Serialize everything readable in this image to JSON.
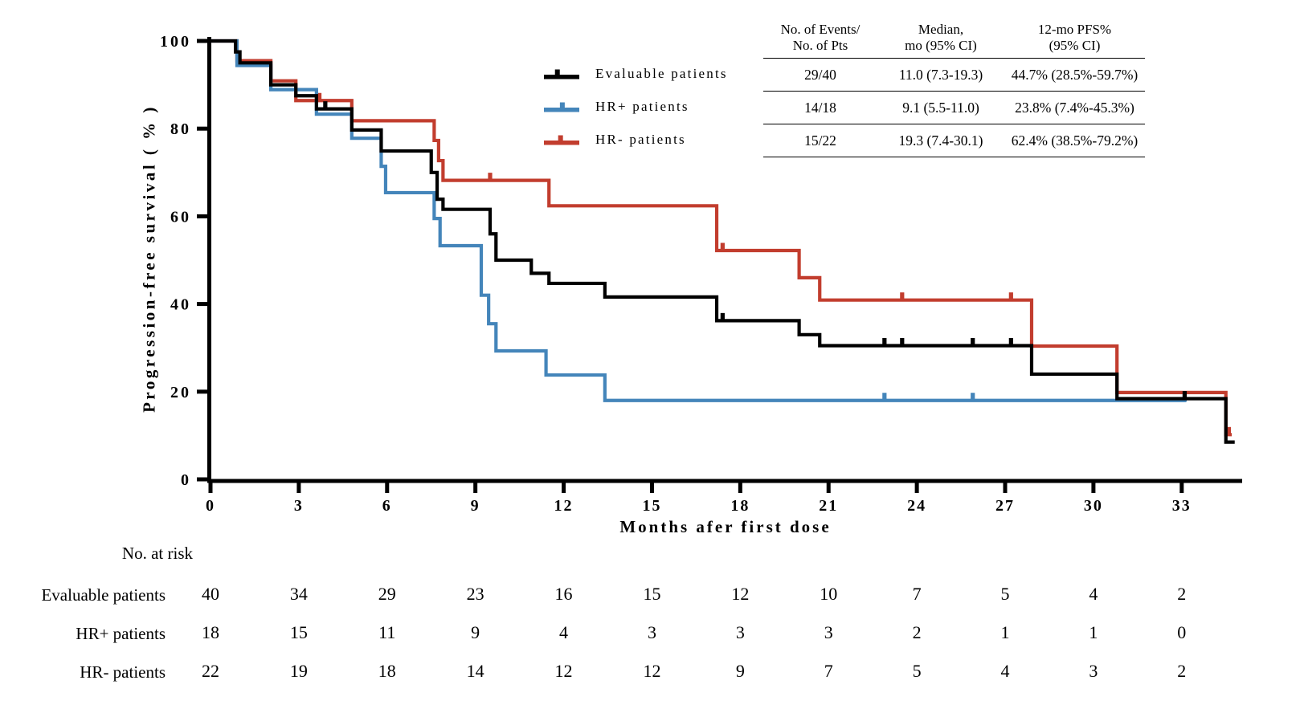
{
  "chart_data": {
    "type": "line",
    "subtype": "kaplan-meier-step",
    "title": "",
    "xlabel": "Months afer first dose",
    "ylabel": "Progression-free survival ( % )",
    "xlim": [
      0,
      35
    ],
    "ylim": [
      0,
      100
    ],
    "x_ticks": [
      0,
      3,
      6,
      9,
      12,
      15,
      18,
      21,
      24,
      27,
      30,
      33
    ],
    "y_ticks": [
      0,
      20,
      40,
      60,
      80,
      100
    ],
    "grid": false,
    "legend_position": "upper-right",
    "series": [
      {
        "name": "Evaluable patients",
        "color": "#000000",
        "steps": [
          [
            0,
            100
          ],
          [
            0.85,
            97.5
          ],
          [
            1.0,
            95
          ],
          [
            2.05,
            90
          ],
          [
            2.9,
            87.5
          ],
          [
            3.6,
            84.5
          ],
          [
            4.8,
            79.7
          ],
          [
            5.8,
            74.9
          ],
          [
            7.5,
            70
          ],
          [
            7.7,
            63.9
          ],
          [
            7.9,
            61.6
          ],
          [
            9.5,
            56
          ],
          [
            9.7,
            50
          ],
          [
            10.9,
            47
          ],
          [
            11.5,
            44.7
          ],
          [
            13.4,
            41.6
          ],
          [
            17.2,
            36.2
          ],
          [
            20.0,
            33
          ],
          [
            20.7,
            30.5
          ],
          [
            27.9,
            24
          ],
          [
            30.8,
            18.4
          ],
          [
            34.5,
            8.5
          ]
        ],
        "end_month": 34.8,
        "censors": [
          [
            3.9,
            84.5
          ],
          [
            17.4,
            36.2
          ],
          [
            22.9,
            30.5
          ],
          [
            23.5,
            30.5
          ],
          [
            25.9,
            30.5
          ],
          [
            27.2,
            30.5
          ],
          [
            33.1,
            18.4
          ]
        ]
      },
      {
        "name": "HR+ patients",
        "color": "#4485BA",
        "steps": [
          [
            0,
            100
          ],
          [
            0.9,
            94.4
          ],
          [
            2.05,
            88.9
          ],
          [
            3.6,
            83.3
          ],
          [
            4.8,
            77.8
          ],
          [
            5.8,
            71.4
          ],
          [
            5.95,
            65.4
          ],
          [
            7.6,
            59.5
          ],
          [
            7.8,
            53.3
          ],
          [
            9.2,
            42
          ],
          [
            9.45,
            35.5
          ],
          [
            9.7,
            29.3
          ],
          [
            11.4,
            23.8
          ],
          [
            13.4,
            18.0
          ]
        ],
        "end_month": 33.15,
        "censors": [
          [
            22.9,
            18.0
          ],
          [
            25.9,
            18.0
          ],
          [
            33.1,
            18.0
          ]
        ]
      },
      {
        "name": "HR- patients",
        "color": "#C23D2E",
        "steps": [
          [
            0,
            100
          ],
          [
            0.9,
            95.5
          ],
          [
            2.05,
            90.9
          ],
          [
            2.9,
            86.4
          ],
          [
            4.8,
            81.8
          ],
          [
            7.6,
            77.3
          ],
          [
            7.75,
            72.7
          ],
          [
            7.9,
            68.2
          ],
          [
            11.5,
            62.4
          ],
          [
            17.2,
            52.2
          ],
          [
            20.0,
            46.0
          ],
          [
            20.7,
            40.9
          ],
          [
            27.9,
            30.4
          ],
          [
            30.8,
            19.8
          ],
          [
            34.5,
            10.2
          ]
        ],
        "end_month": 34.7,
        "censors": [
          [
            3.7,
            86.4
          ],
          [
            9.5,
            68.2
          ],
          [
            17.4,
            52.2
          ],
          [
            23.5,
            40.9
          ],
          [
            27.2,
            40.9
          ],
          [
            34.6,
            10.2
          ]
        ]
      }
    ]
  },
  "legend": {
    "entries": [
      {
        "label": "Evaluable patients",
        "color": "#000000"
      },
      {
        "label": "HR+ patients",
        "color": "#4485BA"
      },
      {
        "label": "HR- patients",
        "color": "#C23D2E"
      }
    ]
  },
  "stats_table": {
    "headers": [
      {
        "line1": "No. of Events/",
        "line2": "No. of Pts"
      },
      {
        "line1": "Median,",
        "line2": "mo (95% CI)"
      },
      {
        "line1": "12-mo PFS%",
        "line2": "(95% CI)"
      }
    ],
    "rows": [
      {
        "label": "Evaluable patients",
        "cells": [
          "29/40",
          "11.0 (7.3-19.3)",
          "44.7% (28.5%-59.7%)"
        ]
      },
      {
        "label": "HR+ patients",
        "cells": [
          "14/18",
          "9.1 (5.5-11.0)",
          "23.8% (7.4%-45.3%)"
        ]
      },
      {
        "label": "HR- patients",
        "cells": [
          "15/22",
          "19.3 (7.4-30.1)",
          "62.4% (38.5%-79.2%)"
        ]
      }
    ]
  },
  "risk_table": {
    "title": "No. at risk",
    "months": [
      0,
      3,
      6,
      9,
      12,
      15,
      18,
      21,
      24,
      27,
      30,
      33
    ],
    "rows": [
      {
        "label": "Evaluable patients",
        "values": [
          40,
          34,
          29,
          23,
          16,
          15,
          12,
          10,
          7,
          5,
          4,
          2
        ]
      },
      {
        "label": "HR+ patients",
        "values": [
          18,
          15,
          11,
          9,
          4,
          3,
          3,
          3,
          2,
          1,
          1,
          0
        ]
      },
      {
        "label": "HR- patients",
        "values": [
          22,
          19,
          18,
          14,
          12,
          12,
          9,
          7,
          5,
          4,
          3,
          2
        ]
      }
    ]
  }
}
